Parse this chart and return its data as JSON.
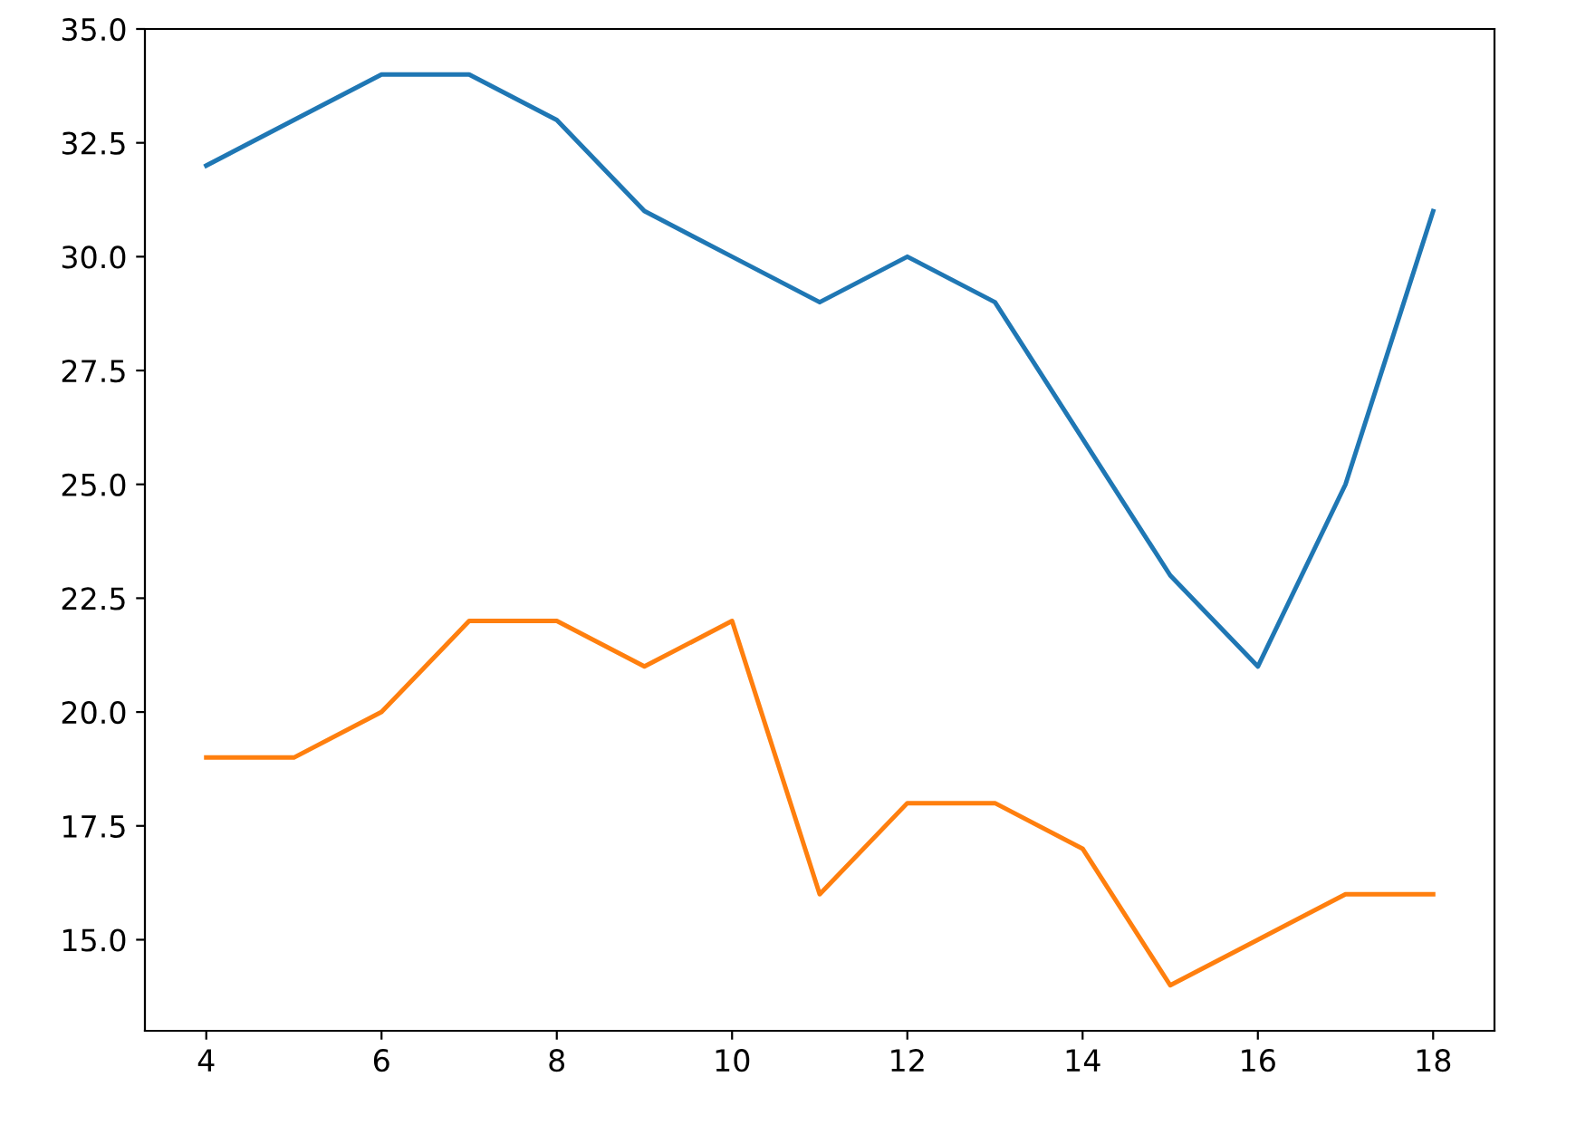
{
  "chart_data": {
    "type": "line",
    "x": [
      4,
      5,
      6,
      7,
      8,
      9,
      10,
      11,
      12,
      13,
      14,
      15,
      16,
      17,
      18
    ],
    "series": [
      {
        "color": "#1f77b4",
        "values": [
          32,
          33,
          34,
          34,
          33,
          31,
          30,
          29,
          30,
          29,
          26,
          23,
          21,
          25,
          31
        ]
      },
      {
        "color": "#ff7f0e",
        "values": [
          19,
          19,
          20,
          22,
          22,
          21,
          22,
          16,
          18,
          18,
          17,
          14,
          15,
          16,
          16
        ]
      }
    ],
    "xlim": [
      3.3,
      18.7
    ],
    "xticks": [
      4,
      6,
      8,
      10,
      12,
      14,
      16,
      18
    ],
    "ylim": [
      13,
      35
    ],
    "yticks": [
      {
        "value": 15,
        "label": "15.0"
      },
      {
        "value": 17.5,
        "label": "17.5"
      },
      {
        "value": 20,
        "label": "20.0"
      },
      {
        "value": 22.5,
        "label": "22.5"
      },
      {
        "value": 25,
        "label": "25.0"
      },
      {
        "value": 27.5,
        "label": "27.5"
      },
      {
        "value": 30,
        "label": "30.0"
      },
      {
        "value": 32.5,
        "label": "32.5"
      },
      {
        "value": 35,
        "label": "35.0"
      }
    ],
    "grid": false,
    "marker": "none",
    "line_style": "solid"
  }
}
